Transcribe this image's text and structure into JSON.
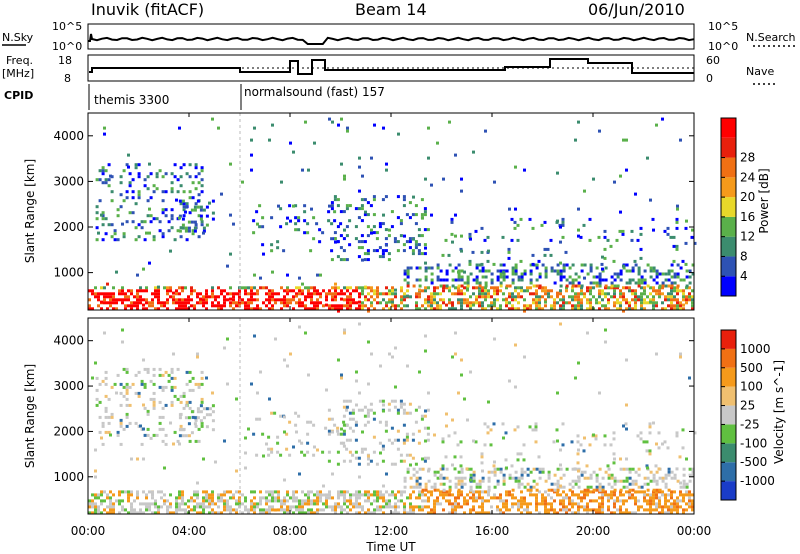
{
  "header": {
    "station": "Inuvik (fitACF)",
    "beam": "Beam 14",
    "date": "06/Jun/2010"
  },
  "summary": {
    "nsky_label": "N.Sky",
    "nsky_ticks": [
      "10^5",
      "10^0"
    ],
    "nsearch_label": "N.Search",
    "nsearch_ticks": [
      "10^5",
      "10^0"
    ],
    "freq_label_top": "Freq.",
    "freq_label_bottom": "[MHz]",
    "freq_ticks": [
      "18",
      "8"
    ],
    "nave_label": "Nave",
    "nave_ticks": [
      "60",
      "0"
    ],
    "cpid_label": "CPID",
    "cpid_segments": [
      {
        "label": "themis 3300",
        "start_hour": 0
      },
      {
        "label": "normalsound (fast) 157",
        "start_hour": 6
      }
    ]
  },
  "chart_data": [
    {
      "type": "heatmap",
      "name": "power",
      "ylabel": "Slant Range [km]",
      "ylim": [
        180,
        4500
      ],
      "xlim_hours": [
        0,
        24
      ],
      "y_ticks": [
        "1000",
        "2000",
        "3000",
        "4000"
      ],
      "colorbar_label": "Power [dB]",
      "colorbar_ticks": [
        "4",
        "8",
        "12",
        "16",
        "20",
        "24",
        "28"
      ],
      "colors": [
        "#0000ff",
        "#2e52b4",
        "#3b8c6e",
        "#5ab04a",
        "#e8d82a",
        "#f59a1b",
        "#f07014",
        "#e8200c",
        "#ff0000"
      ]
    },
    {
      "type": "heatmap",
      "name": "velocity",
      "ylabel": "Slant Range [km]",
      "ylim": [
        180,
        4500
      ],
      "xlim_hours": [
        0,
        24
      ],
      "y_ticks": [
        "1000",
        "2000",
        "3000",
        "4000"
      ],
      "colorbar_label": "Velocity [m s^-1]",
      "colorbar_ticks": [
        "1000",
        "500",
        "100",
        "25",
        "-25",
        "-100",
        "-500",
        "-1000"
      ],
      "colors": [
        "#1a3cc8",
        "#2e6ea8",
        "#3b8c6e",
        "#60c040",
        "#c8c8c8",
        "#f0c070",
        "#f59a1b",
        "#f07014",
        "#e8200c"
      ]
    }
  ],
  "x_axis": {
    "ticks": [
      "00:00",
      "04:00",
      "08:00",
      "12:00",
      "16:00",
      "20:00",
      "00:00"
    ],
    "label": "Time UT"
  }
}
